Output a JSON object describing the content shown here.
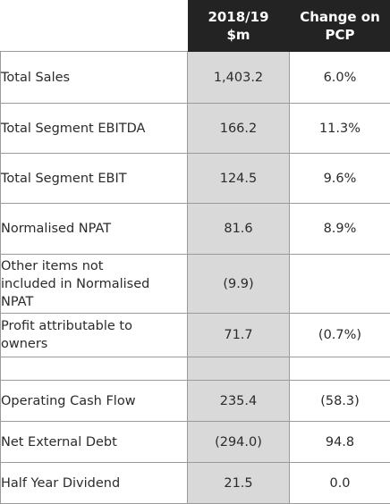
{
  "table": {
    "headers": {
      "label": "",
      "value": "2018/19\n$m",
      "change": "Change on\nPCP"
    },
    "rows": [
      {
        "label": "Total Sales",
        "value": "1,403.2",
        "change": "6.0%"
      },
      {
        "label": "Total Segment EBITDA",
        "value": "166.2",
        "change": "11.3%"
      },
      {
        "label": "Total Segment EBIT",
        "value": "124.5",
        "change": "9.6%"
      },
      {
        "label": "Normalised NPAT",
        "value": "81.6",
        "change": "8.9%"
      },
      {
        "label": "Other items not\nincluded in Normalised\nNPAT",
        "value": "(9.9)",
        "change": ""
      },
      {
        "label": "Profit attributable to\nowners",
        "value": "71.7",
        "change": "(0.7%)"
      },
      {
        "label": "",
        "value": "",
        "change": ""
      },
      {
        "label": "Operating Cash Flow",
        "value": "235.4",
        "change": "(58.3)"
      },
      {
        "label": "Net External Debt",
        "value": "(294.0)",
        "change": "94.8"
      },
      {
        "label": "Half Year Dividend",
        "value": "21.5",
        "change": "0.0"
      }
    ]
  }
}
